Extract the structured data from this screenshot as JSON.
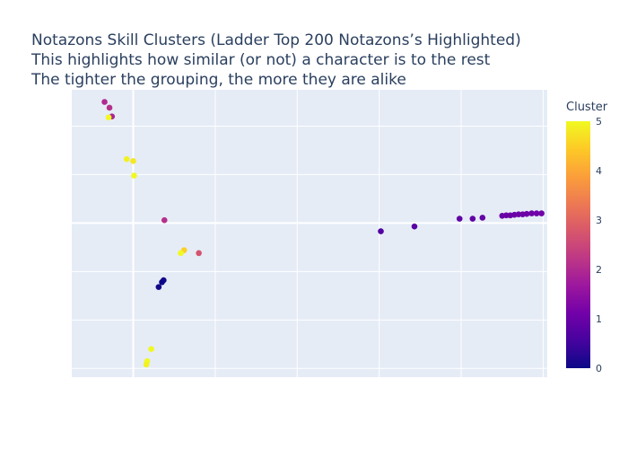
{
  "chart_data": {
    "type": "scatter",
    "title": "Notazons Skill Clusters (Ladder Top 200 Notazons’s Highlighted)",
    "subtitle_lines": [
      "This highlights how similar (or not) a character is to the rest",
      "The tighter the grouping, the more they are alike"
    ],
    "xlabel": "",
    "ylabel": "",
    "show_tick_labels": false,
    "grid": true,
    "xlim": [
      -0.75,
      5.05
    ],
    "ylim": [
      -3.18,
      2.75
    ],
    "colorbar": {
      "title": "Cluster",
      "range": [
        0,
        5
      ],
      "ticks": [
        "0",
        "1",
        "2",
        "3",
        "4",
        "5"
      ],
      "colorscale": [
        "#0d0887",
        "#46039f",
        "#7201a8",
        "#9c179e",
        "#bd3786",
        "#d8576b",
        "#ed7953",
        "#fb9f3a",
        "#fdca26",
        "#f0f921"
      ]
    },
    "points": [
      {
        "x": -0.35,
        "y": 2.5,
        "cluster": 2.0
      },
      {
        "x": -0.29,
        "y": 2.38,
        "cluster": 2.1
      },
      {
        "x": -0.26,
        "y": 2.2,
        "cluster": 1.9
      },
      {
        "x": -0.3,
        "y": 2.18,
        "cluster": 5.0
      },
      {
        "x": -0.08,
        "y": 1.32,
        "cluster": 4.9
      },
      {
        "x": 0.0,
        "y": 1.28,
        "cluster": 4.8
      },
      {
        "x": 0.01,
        "y": 0.98,
        "cluster": 5.0
      },
      {
        "x": 0.38,
        "y": 0.06,
        "cluster": 2.1
      },
      {
        "x": 0.62,
        "y": -0.56,
        "cluster": 4.5
      },
      {
        "x": 0.58,
        "y": -0.62,
        "cluster": 5.0
      },
      {
        "x": 0.8,
        "y": -0.62,
        "cluster": 2.7
      },
      {
        "x": 0.37,
        "y": -1.18,
        "cluster": 0.1
      },
      {
        "x": 0.35,
        "y": -1.22,
        "cluster": 0.0
      },
      {
        "x": 0.31,
        "y": -1.32,
        "cluster": 0.05
      },
      {
        "x": 0.22,
        "y": -2.6,
        "cluster": 5.0
      },
      {
        "x": 0.17,
        "y": -2.85,
        "cluster": 5.0
      },
      {
        "x": 0.16,
        "y": -2.92,
        "cluster": 4.9
      },
      {
        "x": 3.02,
        "y": -0.17,
        "cluster": 0.7
      },
      {
        "x": 3.43,
        "y": -0.07,
        "cluster": 0.8
      },
      {
        "x": 3.98,
        "y": 0.09,
        "cluster": 0.9
      },
      {
        "x": 4.14,
        "y": 0.09,
        "cluster": 0.9
      },
      {
        "x": 4.26,
        "y": 0.11,
        "cluster": 0.95
      },
      {
        "x": 4.5,
        "y": 0.15,
        "cluster": 1.0
      },
      {
        "x": 4.55,
        "y": 0.16,
        "cluster": 1.0
      },
      {
        "x": 4.6,
        "y": 0.16,
        "cluster": 1.0
      },
      {
        "x": 4.65,
        "y": 0.17,
        "cluster": 1.0
      },
      {
        "x": 4.7,
        "y": 0.18,
        "cluster": 1.0
      },
      {
        "x": 4.75,
        "y": 0.18,
        "cluster": 1.05
      },
      {
        "x": 4.8,
        "y": 0.19,
        "cluster": 1.05
      },
      {
        "x": 4.86,
        "y": 0.2,
        "cluster": 1.05
      },
      {
        "x": 4.92,
        "y": 0.2,
        "cluster": 1.1
      },
      {
        "x": 4.98,
        "y": 0.2,
        "cluster": 1.1
      }
    ]
  }
}
